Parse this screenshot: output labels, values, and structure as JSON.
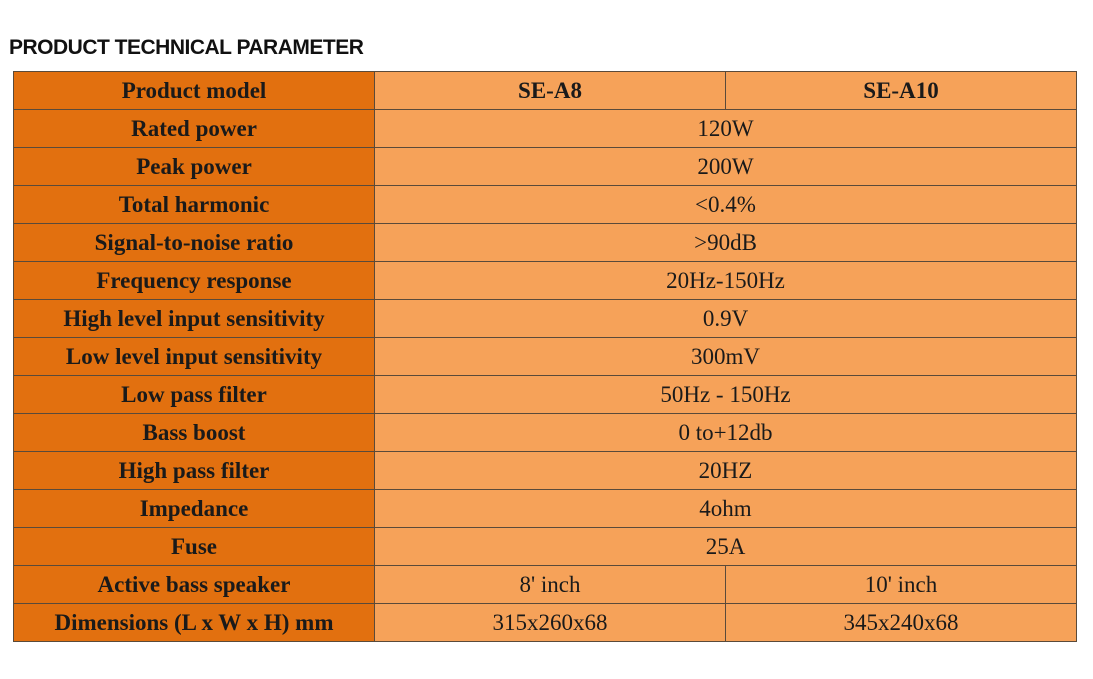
{
  "header": {
    "title": "PRODUCT TECHNICAL PARAMETER"
  },
  "table": {
    "columns": [
      "Product model",
      "SE-A8",
      "SE-A10"
    ],
    "rows": [
      [
        "Rated power",
        "120W"
      ],
      [
        "Peak power",
        "200W"
      ],
      [
        "Total harmonic",
        "<0.4%"
      ],
      [
        "Signal-to-noise ratio",
        ">90dB"
      ],
      [
        "Frequency response",
        "20Hz-150Hz"
      ],
      [
        "High level input sensitivity",
        "0.9V"
      ],
      [
        "Low level input sensitivity",
        "300mV"
      ],
      [
        "Low pass filter",
        "50Hz - 150Hz"
      ],
      [
        "Bass boost",
        "0 to+12db"
      ],
      [
        "High pass filter",
        "20HZ"
      ],
      [
        "Impedance",
        "4ohm"
      ],
      [
        "Fuse",
        "25A"
      ],
      [
        "Active bass speaker",
        "8' inch",
        "10' inch"
      ],
      [
        "Dimensions (L x W x H) mm",
        "315x260x68",
        "345x240x68"
      ]
    ]
  }
}
